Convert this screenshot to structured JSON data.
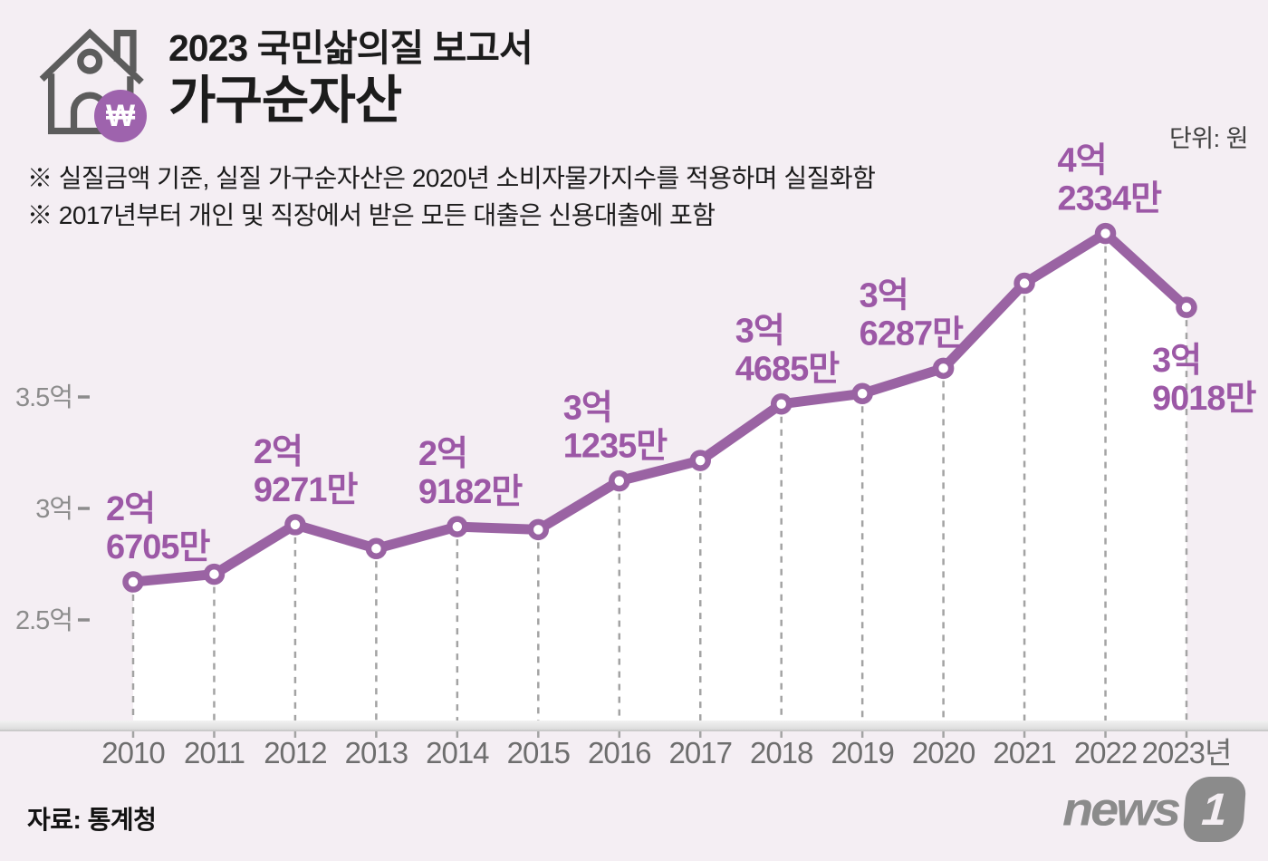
{
  "header": {
    "report_title": "2023 국민삶의질 보고서",
    "chart_title": "가구순자산",
    "icon": "house-icon",
    "badge_icon": "won-sign-icon",
    "badge_symbol": "₩"
  },
  "notes": {
    "line1": "※ 실질금액 기준, 실질 가구순자산은 2020년 소비자물가지수를 적용하며 실질화함",
    "line2": "※ 2017년부터 개인 및 직장에서 받은 모든 대출은 신용대출에 포함"
  },
  "footer": {
    "source": "자료: 통계청",
    "logo_text": "news",
    "logo_number": "1"
  },
  "chart_data": {
    "type": "line",
    "title": "가구순자산",
    "unit_label": "단위: 원",
    "x_axis_note": "years 2010-2023, last tick shown as 2023년",
    "ylim_man": [
      20500,
      44500
    ],
    "grid": "vertical dashed guide per point",
    "legend": "none",
    "y_ticks": [
      {
        "label": "3.5억",
        "value_man": 35000
      },
      {
        "label": "3억",
        "value_man": 30000
      },
      {
        "label": "2.5억",
        "value_man": 25000
      }
    ],
    "points": [
      {
        "year": "2010",
        "display_year": "2010",
        "value_man": 26705,
        "label": [
          "2억",
          "6705만"
        ]
      },
      {
        "year": "2011",
        "display_year": "2011",
        "value_man": 27050,
        "label": null
      },
      {
        "year": "2012",
        "display_year": "2012",
        "value_man": 29271,
        "label": [
          "2억",
          "9271만"
        ]
      },
      {
        "year": "2013",
        "display_year": "2013",
        "value_man": 28200,
        "label": null
      },
      {
        "year": "2014",
        "display_year": "2014",
        "value_man": 29182,
        "label": [
          "2억",
          "9182만"
        ]
      },
      {
        "year": "2015",
        "display_year": "2015",
        "value_man": 29050,
        "label": null
      },
      {
        "year": "2016",
        "display_year": "2016",
        "value_man": 31235,
        "label": [
          "3억",
          "1235만"
        ]
      },
      {
        "year": "2017",
        "display_year": "2017",
        "value_man": 32150,
        "label": null
      },
      {
        "year": "2018",
        "display_year": "2018",
        "value_man": 34685,
        "label": [
          "3억",
          "4685만"
        ]
      },
      {
        "year": "2019",
        "display_year": "2019",
        "value_man": 35150,
        "label": null
      },
      {
        "year": "2020",
        "display_year": "2020",
        "value_man": 36287,
        "label": [
          "3억",
          "6287만"
        ]
      },
      {
        "year": "2021",
        "display_year": "2021",
        "value_man": 40100,
        "label": null
      },
      {
        "year": "2022",
        "display_year": "2022",
        "value_man": 42334,
        "label": [
          "4억",
          "2334만"
        ]
      },
      {
        "year": "2023",
        "display_year": "2023년",
        "value_man": 39018,
        "label": [
          "3억",
          "9018만"
        ]
      }
    ],
    "colors": {
      "background": "#f4eef3",
      "line": "#9a63a3",
      "marker_fill": "#ffffff",
      "value_label": "#9c58a6",
      "area_fill": "#ffffff",
      "guide_dash": "#a3a3a3",
      "axis_band_light": "#f2f2f2",
      "axis_band_dark": "#d7d7d7",
      "axis_band_edge": "#c6c6c6",
      "year_label": "#6e6e6e",
      "tick_label": "#8c8c8c",
      "badge_purple": "#9e63ad",
      "icon_gray": "#5c5c5c",
      "logo_gray": "#8b8b8b"
    }
  }
}
